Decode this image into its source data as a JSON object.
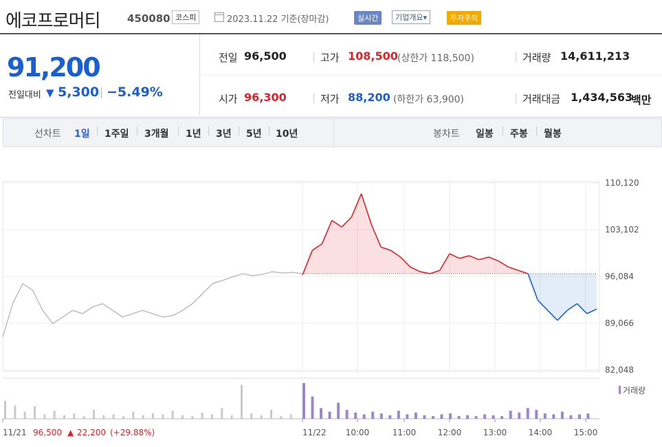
{
  "header": {
    "company": "에코프로머티",
    "code": "450080",
    "market": "코스피",
    "date": "2023.11.22 기준(장마감)",
    "realtime": "실시간",
    "company_info": "기업개요▾",
    "warning": "투자주의"
  },
  "quote": {
    "price": "91,200",
    "change_label": "전일대비",
    "change_arrow": "▼",
    "change_amount": "5,300",
    "change_pct": "−5.49%",
    "prev_label": "전일",
    "prev": "96,500",
    "open_label": "시가",
    "open": "96,300",
    "high_label": "고가",
    "high": "108,500",
    "upper_limit": "(상한가 118,500)",
    "low_label": "저가",
    "low": "88,200",
    "lower_limit": "(하한가 63,900)",
    "volume_label": "거래량",
    "volume": "14,611,213",
    "value_label": "거래대금",
    "value": "1,434,563",
    "value_unit": "백만"
  },
  "periods": {
    "line_label": "선차트",
    "items": [
      "1일",
      "1주일",
      "3개월",
      "1년",
      "3년",
      "5년",
      "10년"
    ],
    "active": "1일",
    "candle_label": "봉차트",
    "candle_items": [
      "일봉",
      "주봉",
      "월봉"
    ]
  },
  "colors": {
    "up": "#e0232b",
    "down": "#1a5fd1",
    "gray": "#b5b5b5",
    "volume": "#9c86cc"
  },
  "chart_data": {
    "type": "line",
    "ylim": [
      82048,
      110120
    ],
    "y_ticks": [
      "110,120",
      "103,102",
      "96,084",
      "89,066",
      "82,048"
    ],
    "baseline": 96500,
    "x_tick_labels": [
      "11/22",
      "10:00",
      "11:00",
      "12:00",
      "13:00",
      "14:00",
      "15:00"
    ],
    "prev_day": {
      "label": "11/21",
      "summary_close": "96,500",
      "summary_arrow": "▲",
      "summary_change": "22,200",
      "summary_pct": "(+29.88%)",
      "series": [
        87000,
        92000,
        95000,
        94000,
        91000,
        89000,
        90000,
        91000,
        90500,
        91500,
        92000,
        91000,
        90000,
        90500,
        91000,
        90500,
        90000,
        90200,
        91000,
        92000,
        93500,
        95000,
        95500,
        96000,
        96500,
        96200,
        96400,
        96800,
        96600,
        96700,
        96500
      ]
    },
    "today": {
      "series": [
        96300,
        100000,
        101000,
        104500,
        103500,
        105000,
        108500,
        104000,
        100500,
        100000,
        99000,
        97500,
        96800,
        96500,
        97000,
        99500,
        98800,
        99200,
        98600,
        99000,
        98400,
        97500,
        97000,
        96500,
        92500,
        91000,
        89500,
        91000,
        92000,
        90500,
        91200
      ]
    },
    "volume_legend": "거래량",
    "volume_prev": [
      20,
      15,
      8,
      14,
      5,
      9,
      4,
      6,
      3,
      10,
      4,
      5,
      3,
      8,
      4,
      6,
      5,
      9,
      4,
      3,
      7,
      5,
      12,
      4,
      38,
      6,
      4,
      10,
      3,
      5
    ],
    "volume_today": [
      40,
      25,
      12,
      8,
      18,
      10,
      7,
      5,
      8,
      6,
      4,
      9,
      5,
      7,
      4,
      3,
      5,
      6,
      3,
      4,
      3,
      5,
      4,
      3,
      9,
      7,
      12,
      10,
      6,
      5,
      8,
      4,
      5,
      6
    ]
  }
}
